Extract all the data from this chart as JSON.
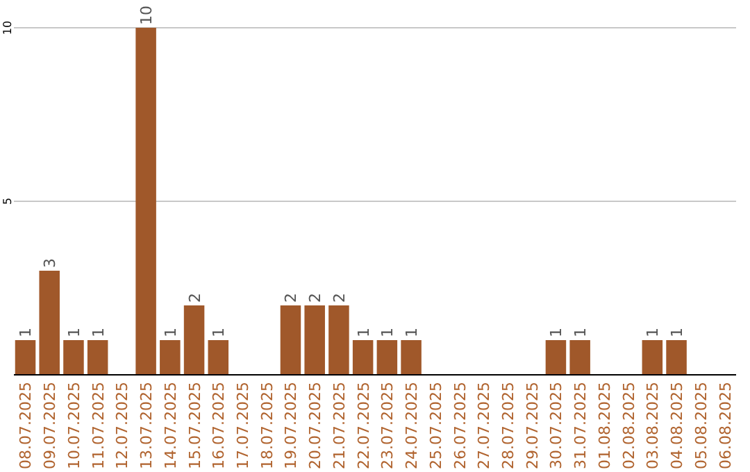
{
  "chart_data": {
    "type": "bar",
    "categories": [
      "08.07.2025",
      "09.07.2025",
      "10.07.2025",
      "11.07.2025",
      "12.07.2025",
      "13.07.2025",
      "14.07.2025",
      "15.07.2025",
      "16.07.2025",
      "17.07.2025",
      "18.07.2025",
      "19.07.2025",
      "20.07.2025",
      "21.07.2025",
      "22.07.2025",
      "23.07.2025",
      "24.07.2025",
      "25.07.2025",
      "26.07.2025",
      "27.07.2025",
      "28.07.2025",
      "29.07.2025",
      "30.07.2025",
      "31.07.2025",
      "01.08.2025",
      "02.08.2025",
      "03.08.2025",
      "04.08.2025",
      "05.08.2025",
      "06.08.2025"
    ],
    "values": [
      1,
      3,
      1,
      1,
      0,
      10,
      1,
      2,
      1,
      0,
      0,
      2,
      2,
      2,
      1,
      1,
      1,
      0,
      0,
      0,
      0,
      0,
      1,
      1,
      0,
      0,
      1,
      1,
      0,
      0
    ],
    "value_labels": [
      "1",
      "3",
      "1",
      "1",
      null,
      "10",
      "1",
      "2",
      "1",
      null,
      null,
      "2",
      "2",
      "2",
      "1",
      "1",
      "1",
      null,
      null,
      null,
      null,
      null,
      "1",
      "1",
      null,
      null,
      "1",
      "1",
      null,
      null
    ],
    "color": "#a0582a",
    "ylim": [
      0,
      10
    ],
    "yticks": [
      5,
      10
    ],
    "grid": "y"
  }
}
